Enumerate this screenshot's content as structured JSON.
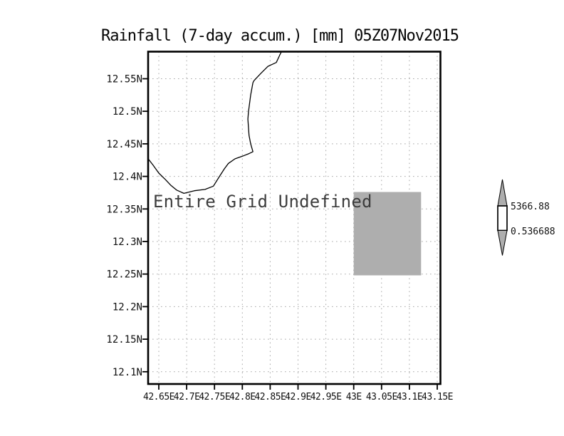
{
  "chart_data": {
    "type": "map",
    "title": "Rainfall (7-day accum.) [mm] 05Z07Nov2015",
    "annotation": "Entire Grid Undefined",
    "grid": true,
    "xlim": [
      42.627,
      43.156
    ],
    "ylim": [
      12.081,
      12.592
    ],
    "x_ticks": [
      {
        "lon": 42.65,
        "label": "42.65E"
      },
      {
        "lon": 42.7,
        "label": "42.7E"
      },
      {
        "lon": 42.75,
        "label": "42.75E"
      },
      {
        "lon": 42.8,
        "label": "42.8E"
      },
      {
        "lon": 42.85,
        "label": "42.85E"
      },
      {
        "lon": 42.9,
        "label": "42.9E"
      },
      {
        "lon": 42.95,
        "label": "42.95E"
      },
      {
        "lon": 43.0,
        "label": "43E"
      },
      {
        "lon": 43.05,
        "label": "43.05E"
      },
      {
        "lon": 43.1,
        "label": "43.1E"
      },
      {
        "lon": 43.15,
        "label": "43.15E"
      }
    ],
    "y_ticks": [
      {
        "lat": 12.55,
        "label": "12.55N"
      },
      {
        "lat": 12.5,
        "label": "12.5N"
      },
      {
        "lat": 12.45,
        "label": "12.45N"
      },
      {
        "lat": 12.4,
        "label": "12.4N"
      },
      {
        "lat": 12.35,
        "label": "12.35N"
      },
      {
        "lat": 12.3,
        "label": "12.3N"
      },
      {
        "lat": 12.25,
        "label": "12.25N"
      },
      {
        "lat": 12.2,
        "label": "12.2N"
      },
      {
        "lat": 12.15,
        "label": "12.15N"
      },
      {
        "lat": 12.1,
        "label": "12.1N"
      }
    ],
    "coastline": [
      [
        42.87,
        12.591
      ],
      [
        42.867,
        12.586
      ],
      [
        42.861,
        12.575
      ],
      [
        42.851,
        12.571
      ],
      [
        42.846,
        12.569
      ],
      [
        42.833,
        12.558
      ],
      [
        42.821,
        12.547
      ],
      [
        42.819,
        12.544
      ],
      [
        42.815,
        12.525
      ],
      [
        42.811,
        12.499
      ],
      [
        42.81,
        12.488
      ],
      [
        42.812,
        12.463
      ],
      [
        42.815,
        12.45
      ],
      [
        42.819,
        12.438
      ],
      [
        42.812,
        12.435
      ],
      [
        42.8,
        12.431
      ],
      [
        42.787,
        12.427
      ],
      [
        42.775,
        12.42
      ],
      [
        42.768,
        12.412
      ],
      [
        42.759,
        12.4
      ],
      [
        42.748,
        12.385
      ],
      [
        42.733,
        12.38
      ],
      [
        42.714,
        12.378
      ],
      [
        42.695,
        12.374
      ],
      [
        42.682,
        12.379
      ],
      [
        42.672,
        12.386
      ],
      [
        42.662,
        12.395
      ],
      [
        42.65,
        12.405
      ],
      [
        42.64,
        12.417
      ],
      [
        42.631,
        12.427
      ]
    ],
    "undefined_region": {
      "lon_min": 43.0,
      "lon_max": 43.121,
      "lat_min": 12.248,
      "lat_max": 12.376,
      "color": "#aeaeae"
    },
    "colorbar": {
      "max": "5366.88",
      "min": "0.536688",
      "fill": "#aeaeae"
    }
  }
}
